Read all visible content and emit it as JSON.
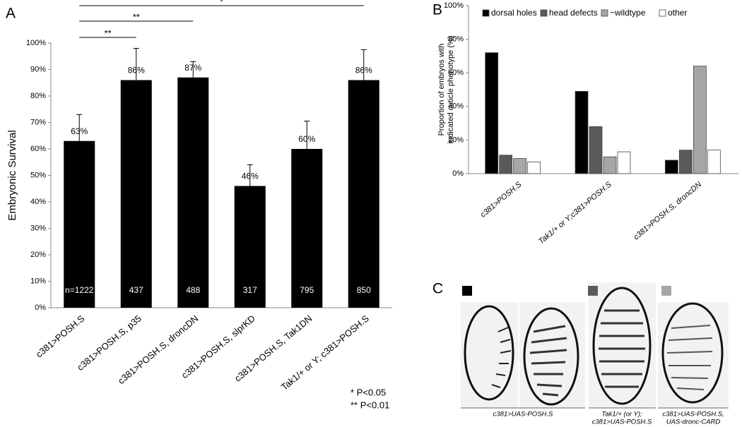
{
  "chart_data": [
    {
      "type": "bar",
      "panel": "A",
      "ylabel": "Embryonic Survival",
      "categories": [
        "c381>POSH.S",
        "c381>POSH.S, p35",
        "c381>POSH.S, droncDN",
        "c381>POSH.S, slprKD",
        "c381>POSH.S, Tak1DN",
        "Tak1/+ or Y; c381>POSH.S"
      ],
      "values": [
        63,
        86,
        87,
        46,
        60,
        86
      ],
      "value_labels": [
        "63%",
        "86%",
        "87%",
        "46%",
        "60%",
        "86%"
      ],
      "errors": [
        10,
        12,
        6,
        8,
        10.5,
        11.5
      ],
      "n_labels": [
        "n=1222",
        "437",
        "488",
        "317",
        "795",
        "850"
      ],
      "color": "#000000",
      "ylim": [
        0,
        100
      ],
      "yticks": [
        {
          "value": 0,
          "label": "0%"
        },
        {
          "value": 10,
          "label": "10%"
        },
        {
          "value": 20,
          "label": "20%"
        },
        {
          "value": 30,
          "label": "30%"
        },
        {
          "value": 40,
          "label": "40%"
        },
        {
          "value": 50,
          "label": "50%"
        },
        {
          "value": 60,
          "label": "60%"
        },
        {
          "value": 70,
          "label": "70%"
        },
        {
          "value": 80,
          "label": "80%"
        },
        {
          "value": 90,
          "label": "90%"
        },
        {
          "value": 100,
          "label": "100%"
        }
      ],
      "significance": [
        {
          "between": [
            "c381>POSH.S",
            "c381>POSH.S, p35"
          ],
          "label": "**"
        },
        {
          "between": [
            "c381>POSH.S",
            "c381>POSH.S, droncDN"
          ],
          "label": "**"
        },
        {
          "between": [
            "c381>POSH.S",
            "Tak1/+ or Y; c381>POSH.S"
          ],
          "label": "*"
        }
      ],
      "notes": [
        "* P<0.05",
        "** P<0.01"
      ]
    },
    {
      "type": "bar",
      "panel": "B",
      "ylabel_lines": [
        "Proportion of embryos with",
        "indicated cuticle phenotype (%)"
      ],
      "categories": [
        "c381>POSH.S",
        "Tak1/+ or Y;c381>POSH.S",
        "c381>POSH.S, droncDN"
      ],
      "series": [
        {
          "name": "dorsal holes",
          "color": "#000000",
          "values": [
            72,
            49,
            8
          ]
        },
        {
          "name": "head defects",
          "color": "#5a5a5a",
          "values": [
            11,
            28,
            14
          ]
        },
        {
          "name": "~wildtype",
          "color": "#a6a6a6",
          "values": [
            9,
            10,
            64
          ]
        },
        {
          "name": "other",
          "color": "#ffffff",
          "values": [
            7,
            13,
            14
          ]
        }
      ],
      "ylim": [
        0,
        100
      ],
      "yticks": [
        {
          "value": 0,
          "label": "0%"
        },
        {
          "value": 20,
          "label": "20%"
        },
        {
          "value": 40,
          "label": "40%"
        },
        {
          "value": 60,
          "label": "60%"
        },
        {
          "value": 80,
          "label": "80%"
        },
        {
          "value": 100,
          "label": "100%"
        }
      ],
      "legend": "top"
    }
  ],
  "panel_c": {
    "label": "C",
    "captions": [
      [
        "c381>UAS-POSH.S"
      ],
      [
        "Tak1/+ (or Y);",
        "c381>UAS-POSH.S"
      ],
      [
        "c381>UAS-POSH.S,",
        "UAS-dronc-CARD"
      ]
    ]
  }
}
